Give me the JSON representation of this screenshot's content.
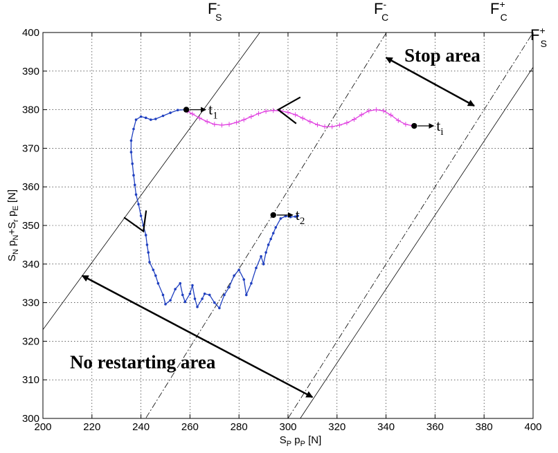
{
  "chart_data": {
    "type": "line",
    "title": "",
    "xlabel": {
      "base": "S",
      "sub1": "P",
      "mid": " p",
      "sub2": "P",
      "tail": " [N]"
    },
    "ylabel": {
      "a": "S",
      "a_sub": "N",
      "b": " p",
      "b_sub": "N",
      "c": "+S",
      "c_sub": "r",
      "d": " p",
      "d_sub": "E",
      "tail": " [N]"
    },
    "xlim": [
      200,
      400
    ],
    "ylim": [
      300,
      400
    ],
    "xticks": [
      200,
      220,
      240,
      260,
      280,
      300,
      320,
      340,
      360,
      380,
      400
    ],
    "yticks": [
      300,
      310,
      320,
      330,
      340,
      350,
      360,
      370,
      380,
      390,
      400
    ],
    "grid": true,
    "colors": {
      "stop_phase": "#e040e0",
      "restart_phase": "#2040c0",
      "lines": "#000000"
    },
    "boundary_lines": [
      {
        "label_main": "F",
        "label_sub": "S",
        "label_sup": "-",
        "style": "solid",
        "from": [
          200,
          323
        ],
        "to": [
          300,
          410
        ]
      },
      {
        "label_main": "F",
        "label_sub": "C",
        "label_sup": "-",
        "style": "dashdot",
        "from": [
          237,
          295
        ],
        "to": [
          350,
          410
        ]
      },
      {
        "label_main": "F",
        "label_sub": "C",
        "label_sup": "+",
        "style": "dashdot",
        "from": [
          295,
          295
        ],
        "to": [
          410,
          410
        ]
      },
      {
        "label_main": "F",
        "label_sub": "S",
        "label_sup": "+",
        "style": "solid",
        "from": [
          305,
          300
        ],
        "to": [
          400,
          391
        ]
      }
    ],
    "series": [
      {
        "color": "#e040e0",
        "marker": "plus",
        "points": [
          [
            351,
            375.8
          ],
          [
            348,
            376.2
          ],
          [
            345,
            377.2
          ],
          [
            342,
            378.6
          ],
          [
            339,
            379.7
          ],
          [
            336,
            380.0
          ],
          [
            333,
            379.7
          ],
          [
            330,
            378.7
          ],
          [
            327,
            377.5
          ],
          [
            324,
            376.6
          ],
          [
            321,
            376.0
          ],
          [
            318,
            375.6
          ],
          [
            315,
            375.6
          ],
          [
            312,
            376.1
          ],
          [
            309,
            376.9
          ],
          [
            306,
            377.8
          ],
          [
            303,
            378.7
          ],
          [
            300,
            379.3
          ],
          [
            297,
            379.7
          ],
          [
            294,
            379.8
          ],
          [
            291,
            379.6
          ],
          [
            288,
            379.0
          ],
          [
            285,
            378.2
          ],
          [
            282,
            377.4
          ],
          [
            279,
            376.7
          ],
          [
            276,
            376.2
          ],
          [
            273,
            376.0
          ],
          [
            270,
            376.2
          ],
          [
            267,
            376.9
          ],
          [
            264,
            377.8
          ],
          [
            261,
            378.9
          ],
          [
            259,
            379.6
          ]
        ]
      },
      {
        "color": "#2040c0",
        "marker": "dot",
        "points": [
          [
            258,
            380
          ],
          [
            255,
            379.9
          ],
          [
            252,
            379.2
          ],
          [
            249,
            378.4
          ],
          [
            246,
            377.6
          ],
          [
            244,
            377.4
          ],
          [
            242,
            377.9
          ],
          [
            240,
            378.2
          ],
          [
            238,
            377.4
          ],
          [
            237,
            375
          ],
          [
            236,
            372
          ],
          [
            236,
            369
          ],
          [
            236.5,
            366
          ],
          [
            237,
            363
          ],
          [
            237.5,
            360.5
          ],
          [
            238,
            358
          ],
          [
            239,
            355.5
          ],
          [
            240,
            352.5
          ],
          [
            241,
            350
          ],
          [
            242,
            347.5
          ],
          [
            242.5,
            345
          ],
          [
            243,
            343
          ],
          [
            243.5,
            340.5
          ],
          [
            245,
            338.5
          ],
          [
            246,
            337
          ],
          [
            247,
            335
          ],
          [
            249,
            332
          ],
          [
            250,
            329.6
          ],
          [
            252,
            330.6
          ],
          [
            254,
            333.5
          ],
          [
            256,
            335
          ],
          [
            257,
            332
          ],
          [
            258,
            330.2
          ],
          [
            260,
            332.3
          ],
          [
            261,
            334.5
          ],
          [
            262,
            331
          ],
          [
            263,
            328.9
          ],
          [
            265,
            331
          ],
          [
            266,
            332.3
          ],
          [
            268,
            332
          ],
          [
            270,
            330
          ],
          [
            272,
            328.6
          ],
          [
            274,
            332
          ],
          [
            276,
            334
          ],
          [
            278,
            337
          ],
          [
            280,
            338.5
          ],
          [
            282,
            336
          ],
          [
            283,
            332
          ],
          [
            285,
            335
          ],
          [
            287,
            339
          ],
          [
            289,
            342
          ],
          [
            290,
            340
          ],
          [
            291,
            343
          ],
          [
            292,
            345
          ],
          [
            293,
            346.5
          ],
          [
            294,
            348
          ],
          [
            295,
            349.5
          ],
          [
            297,
            351.8
          ],
          [
            299,
            352.4
          ],
          [
            301,
            352.2
          ],
          [
            303,
            352.3
          ],
          [
            304,
            352.5
          ]
        ]
      }
    ],
    "markers": [
      {
        "x": 258.5,
        "y": 380.0,
        "name": "t",
        "sub": "1"
      },
      {
        "x": 294.0,
        "y": 352.7,
        "name": "t",
        "sub": "2"
      },
      {
        "x": 351.5,
        "y": 375.8,
        "name": "t",
        "sub": "i"
      }
    ],
    "areas": [
      {
        "label": "Stop area",
        "arrow_from": [
          340,
          393.5
        ],
        "arrow_to": [
          376,
          381
        ],
        "label_at": [
          363,
          392.5
        ]
      },
      {
        "label": "No restarting area",
        "arrow_from": [
          216,
          337
        ],
        "arrow_to": [
          310,
          305.5
        ],
        "label_at": [
          211,
          313
        ]
      }
    ],
    "direction_arrows": [
      {
        "at": [
          296,
          380.0
        ],
        "points": "left"
      },
      {
        "at": [
          241,
          348.5
        ],
        "points": "down"
      }
    ]
  }
}
